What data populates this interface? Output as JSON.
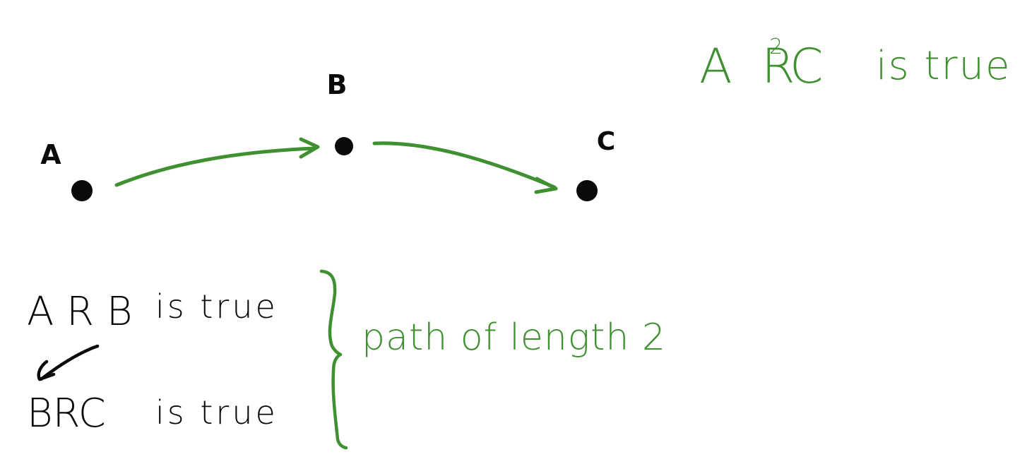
{
  "colors": {
    "ink": "#0a0a0a",
    "accent": "#3f9030"
  },
  "nodes": [
    {
      "id": "A",
      "label": "A"
    },
    {
      "id": "B",
      "label": "B"
    },
    {
      "id": "C",
      "label": "C"
    }
  ],
  "edges": [
    {
      "from": "A",
      "to": "B"
    },
    {
      "from": "B",
      "to": "C"
    }
  ],
  "statement_top": {
    "relation_left": "A R",
    "exponent": "2",
    "relation_right": "C",
    "suffix": "is true"
  },
  "statements": [
    {
      "relation": "A R B",
      "suffix": "is true"
    },
    {
      "relation": "BRC",
      "suffix": "is true"
    }
  ],
  "brace_label": "path of length 2"
}
